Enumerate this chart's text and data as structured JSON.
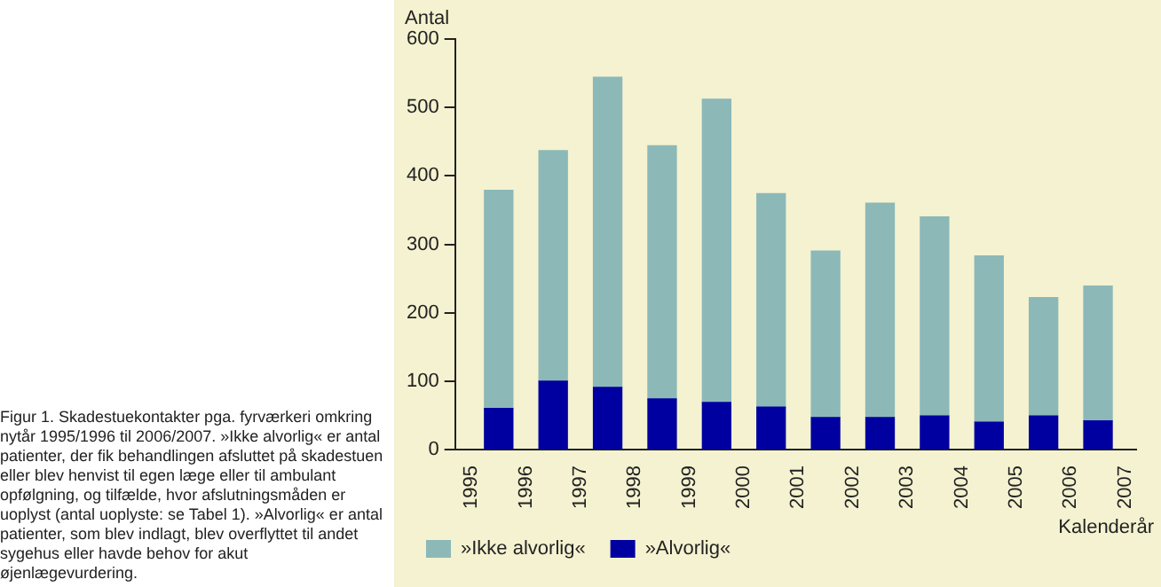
{
  "chart_data": {
    "type": "bar",
    "stacked": true,
    "ylabel": "Antal",
    "xlabel": "Kalenderår",
    "x": [
      1995.5,
      1996.5,
      1997.5,
      1998.5,
      1999.5,
      2000.5,
      2001.5,
      2002.5,
      2003.5,
      2004.5,
      2005.5,
      2006.5
    ],
    "series": [
      {
        "name": "»Alvorlig«",
        "color": "#0000a0",
        "values": [
          60,
          100,
          91,
          74,
          69,
          62,
          47,
          47,
          49,
          40,
          49,
          42
        ]
      },
      {
        "name": "»Ikke alvorlig«",
        "color": "#8cb8b8",
        "values": [
          319,
          337,
          453,
          370,
          443,
          312,
          243,
          313,
          291,
          243,
          173,
          197
        ]
      }
    ],
    "xlim": [
      1994.7,
      2007.2
    ],
    "xticks": [
      1995,
      1996,
      1997,
      1998,
      1999,
      2000,
      2001,
      2002,
      2003,
      2004,
      2005,
      2006,
      2007
    ],
    "ylim": [
      0,
      600
    ],
    "yticks": [
      0,
      100,
      200,
      300,
      400,
      500,
      600
    ],
    "grid": false,
    "legend": "bottom left",
    "annotations": [
      "Figur 1. Skadestuekontakter pga. fyrværkeri omkring nytår 1995/1996 til 2006/2007. »Ikke alvorlig« er antal patienter, der fik behandlingen afsluttet på skadestuen eller blev henvist til egen læge eller til ambulant opfølgning, og tilfælde, hvor afslutningsmåden er uoplyst (antal uoplyste: se Tabel 1). »Alvorlig« er antal patienter, som blev indlagt, blev overflyttet til andet sygehus eller havde behov for akut øjenlægevurdering."
    ]
  }
}
